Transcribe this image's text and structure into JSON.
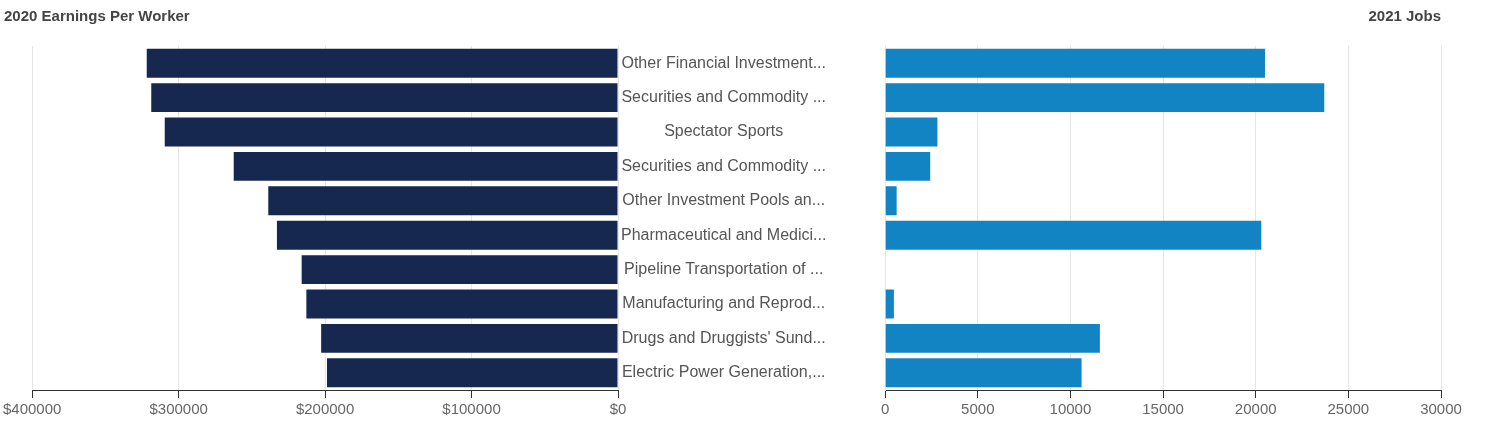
{
  "chart_data": [
    {
      "type": "bar",
      "orientation": "horizontal",
      "title": "2020 Earnings Per Worker",
      "categories": [
        "Other Financial Investment...",
        "Securities and Commodity ...",
        "Spectator Sports",
        "Securities and Commodity ...",
        "Other Investment Pools an...",
        "Pharmaceutical and Medici...",
        "Pipeline Transportation of ...",
        "Manufacturing and Reprod...",
        "Drugs and Druggists' Sund...",
        "Electric Power Generation,..."
      ],
      "values": [
        321800,
        318700,
        309500,
        262400,
        238800,
        232900,
        216000,
        212800,
        202700,
        198700
      ],
      "color": "#16284f",
      "xlim": [
        400000,
        0
      ],
      "xticks": [
        {
          "value": 400000,
          "label": "$400000"
        },
        {
          "value": 300000,
          "label": "$300000"
        },
        {
          "value": 200000,
          "label": "$200000"
        },
        {
          "value": 100000,
          "label": "$100000"
        },
        {
          "value": 0,
          "label": "$0"
        }
      ],
      "grid": "x"
    },
    {
      "type": "bar",
      "orientation": "horizontal",
      "title": "2021 Jobs",
      "values": [
        20500,
        23700,
        2820,
        2430,
        620,
        20300,
        null,
        470,
        11590,
        10600
      ],
      "color": "#1284c4",
      "xlim": [
        0,
        30000
      ],
      "xticks": [
        0,
        5000,
        10000,
        15000,
        20000,
        25000,
        30000
      ],
      "grid": "x",
      "tick_labels": "x"
    }
  ]
}
